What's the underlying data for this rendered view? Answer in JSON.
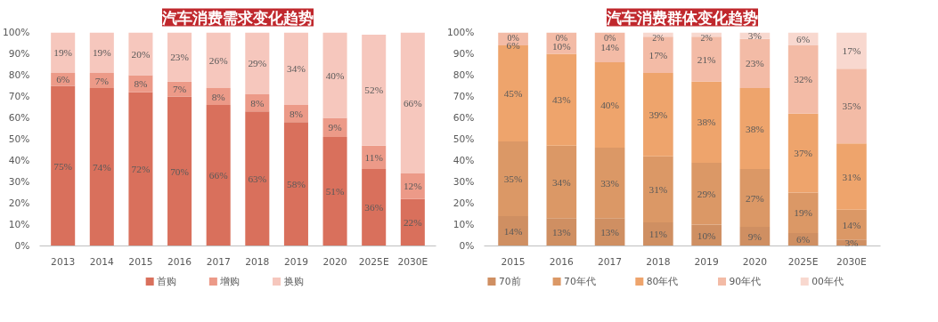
{
  "chart_data": [
    {
      "type": "bar",
      "title": "汽车消费需求变化趋势",
      "stacked": true,
      "data_labels": true,
      "legend": "bottom",
      "grid": false,
      "categories": [
        "2013",
        "2014",
        "2015",
        "2016",
        "2017",
        "2018",
        "2019",
        "2020",
        "2025E",
        "2030E"
      ],
      "ylim": [
        0,
        100
      ],
      "yticks": [
        {
          "value": 0,
          "label": "0%"
        },
        {
          "value": 10,
          "label": "10%"
        },
        {
          "value": 20,
          "label": "20%"
        },
        {
          "value": 30,
          "label": "30%"
        },
        {
          "value": 40,
          "label": "40%"
        },
        {
          "value": 50,
          "label": "50%"
        },
        {
          "value": 60,
          "label": "60%"
        },
        {
          "value": 70,
          "label": "70%"
        },
        {
          "value": 80,
          "label": "80%"
        },
        {
          "value": 90,
          "label": "90%"
        },
        {
          "value": 100,
          "label": "100%"
        }
      ],
      "series": [
        {
          "name": "首购",
          "color": "#d9705c",
          "values": [
            75,
            74,
            72,
            70,
            66,
            63,
            58,
            51,
            36,
            22
          ],
          "value_labels": [
            "75%",
            "74%",
            "72%",
            "70%",
            "66%",
            "63%",
            "58%",
            "51%",
            "36%",
            "22%"
          ]
        },
        {
          "name": "增购",
          "color": "#ec9a88",
          "values": [
            6,
            7,
            8,
            7,
            8,
            8,
            8,
            9,
            11,
            12
          ],
          "value_labels": [
            "6%",
            "7%",
            "8%",
            "7%",
            "8%",
            "8%",
            "8%",
            "9%",
            "11%",
            "12%"
          ]
        },
        {
          "name": "换购",
          "color": "#f6c7bd",
          "values": [
            19,
            19,
            20,
            23,
            26,
            29,
            34,
            40,
            52,
            66
          ],
          "value_labels": [
            "19%",
            "19%",
            "20%",
            "23%",
            "26%",
            "29%",
            "34%",
            "40%",
            "52%",
            "66%"
          ]
        }
      ]
    },
    {
      "type": "bar",
      "title": "汽车消费群体变化趋势",
      "stacked": true,
      "data_labels": true,
      "legend": "bottom",
      "grid": false,
      "categories": [
        "2015",
        "2016",
        "2017",
        "2018",
        "2019",
        "2020",
        "2025E",
        "2030E"
      ],
      "ylim": [
        0,
        100
      ],
      "yticks": [
        {
          "value": 0,
          "label": "0%"
        },
        {
          "value": 10,
          "label": "10%"
        },
        {
          "value": 20,
          "label": "20%"
        },
        {
          "value": 30,
          "label": "30%"
        },
        {
          "value": 40,
          "label": "40%"
        },
        {
          "value": 50,
          "label": "50%"
        },
        {
          "value": 60,
          "label": "60%"
        },
        {
          "value": 70,
          "label": "70%"
        },
        {
          "value": 80,
          "label": "80%"
        },
        {
          "value": 90,
          "label": "90%"
        },
        {
          "value": 100,
          "label": "100%"
        }
      ],
      "series": [
        {
          "name": "70前",
          "color": "#cf8f62",
          "values": [
            14,
            13,
            13,
            11,
            10,
            9,
            6,
            3
          ],
          "value_labels": [
            "14%",
            "13%",
            "13%",
            "11%",
            "10%",
            "9%",
            "6%",
            "3%"
          ]
        },
        {
          "name": "70年代",
          "color": "#db9866",
          "values": [
            35,
            34,
            33,
            31,
            29,
            27,
            19,
            14
          ],
          "value_labels": [
            "35%",
            "34%",
            "33%",
            "31%",
            "29%",
            "27%",
            "19%",
            "14%"
          ]
        },
        {
          "name": "80年代",
          "color": "#eea46c",
          "values": [
            45,
            43,
            40,
            39,
            38,
            38,
            37,
            31
          ],
          "value_labels": [
            "45%",
            "43%",
            "40%",
            "39%",
            "38%",
            "38%",
            "37%",
            "31%"
          ]
        },
        {
          "name": "90年代",
          "color": "#f3bba6",
          "values": [
            6,
            10,
            14,
            17,
            21,
            23,
            32,
            35
          ],
          "value_labels": [
            "6%",
            "10%",
            "14%",
            "17%",
            "21%",
            "23%",
            "32%",
            "35%"
          ]
        },
        {
          "name": "00年代",
          "color": "#f8d8cf",
          "values": [
            0,
            0,
            0,
            2,
            2,
            3,
            6,
            17
          ],
          "value_labels": [
            "0%",
            "0%",
            "0%",
            "2%",
            "2%",
            "3%",
            "6%",
            "17%"
          ]
        }
      ]
    }
  ]
}
